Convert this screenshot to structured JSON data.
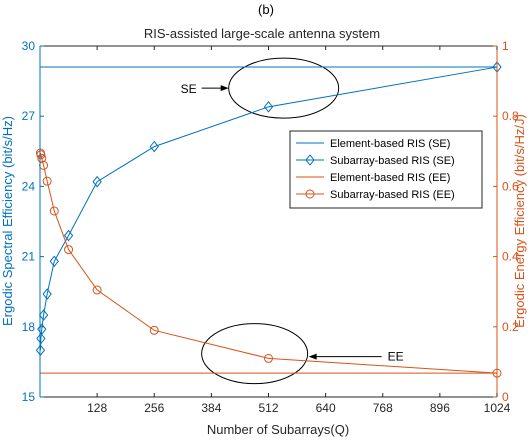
{
  "page_title": "(b)",
  "chart_data": {
    "type": "line",
    "title": "RIS-assisted large-scale antenna system",
    "xlabel": "Number of Subarrays(Q)",
    "ylabel_left": "Ergodic Spectral Efficiency (bit/s/Hz)",
    "ylabel_right": "Ergodic Energy Efficiency (bit/s/Hz/J)",
    "xlim": [
      0,
      1024
    ],
    "ylim_left": [
      15,
      30
    ],
    "ylim_right": [
      0,
      1
    ],
    "x_ticks": [
      128,
      256,
      384,
      512,
      640,
      768,
      896,
      1024
    ],
    "y_ticks_left": [
      15,
      18,
      21,
      24,
      27,
      30
    ],
    "y_ticks_right": [
      0,
      0.2,
      0.4,
      0.6,
      0.8,
      1
    ],
    "grid": false,
    "legend_position": "right-middle",
    "colors": {
      "se": "#0072BD",
      "ee": "#D95319"
    },
    "series": [
      {
        "name": "Element-based RIS (SE)",
        "axis": "left",
        "color": "#0072BD",
        "marker": "none",
        "x": [
          1,
          1024
        ],
        "y": [
          29.1,
          29.1
        ]
      },
      {
        "name": "Subarray-based RIS (SE)",
        "axis": "left",
        "color": "#0072BD",
        "marker": "diamond",
        "x": [
          1,
          2,
          4,
          8,
          16,
          32,
          64,
          128,
          256,
          512,
          1024
        ],
        "y": [
          17.0,
          17.5,
          17.9,
          18.5,
          19.4,
          20.8,
          21.9,
          24.2,
          25.7,
          27.4,
          29.1
        ]
      },
      {
        "name": "Element-based RIS (EE)",
        "axis": "right",
        "color": "#D95319",
        "marker": "none",
        "x": [
          1,
          1024
        ],
        "y": [
          0.068,
          0.068
        ]
      },
      {
        "name": "Subarray-based RIS (EE)",
        "axis": "right",
        "color": "#D95319",
        "marker": "circle",
        "x": [
          1,
          2,
          4,
          8,
          16,
          32,
          64,
          128,
          256,
          512,
          1024
        ],
        "y": [
          0.695,
          0.69,
          0.68,
          0.66,
          0.615,
          0.53,
          0.42,
          0.305,
          0.19,
          0.11,
          0.068
        ]
      }
    ],
    "annotations": [
      {
        "label": "SE",
        "target_x": 546,
        "target_y_left": 28.2,
        "axis": "left"
      },
      {
        "label": "EE",
        "target_x": 640,
        "target_y_right": 0.115,
        "axis": "right"
      }
    ]
  }
}
